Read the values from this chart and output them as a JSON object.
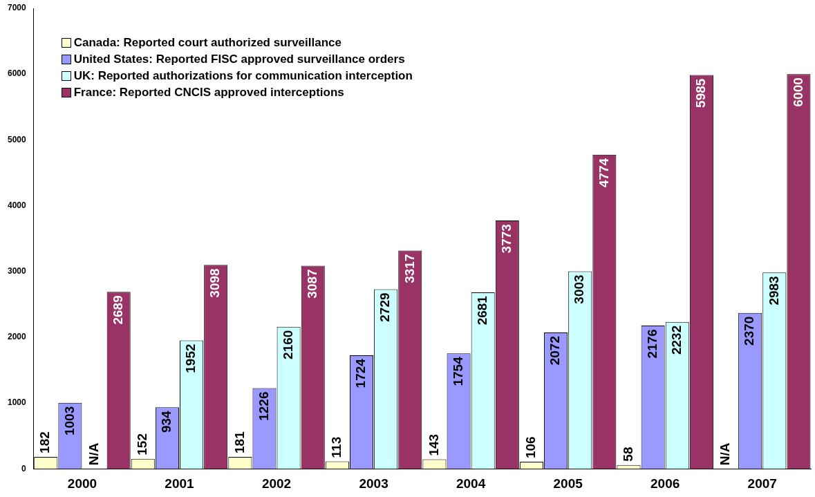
{
  "chart_data": {
    "type": "bar",
    "categories": [
      "2000",
      "2001",
      "2002",
      "2003",
      "2004",
      "2005",
      "2006",
      "2007"
    ],
    "series": [
      {
        "name": "Canada: Reported court authorized surveillance",
        "color": "#ffffcc",
        "values": [
          182,
          152,
          181,
          113,
          143,
          106,
          58,
          null
        ],
        "value_labels": [
          "182",
          "152",
          "181",
          "113",
          "143",
          "106",
          "58",
          "N/A"
        ]
      },
      {
        "name": "United States: Reported FISC approved surveillance orders",
        "color": "#9999ff",
        "values": [
          1003,
          934,
          1226,
          1724,
          1754,
          2072,
          2176,
          2370
        ],
        "value_labels": [
          "1003",
          "934",
          "1226",
          "1724",
          "1754",
          "2072",
          "2176",
          "2370"
        ]
      },
      {
        "name": "UK: Reported authorizations for communication interception",
        "color": "#ccffff",
        "values": [
          null,
          1952,
          2160,
          2729,
          2681,
          3003,
          2232,
          2983
        ],
        "value_labels": [
          "N/A",
          "1952",
          "2160",
          "2729",
          "2681",
          "3003",
          "2232",
          "2983"
        ]
      },
      {
        "name": "France: Reported CNCIS approved interceptions",
        "color": "#993366",
        "values": [
          2689,
          3098,
          3087,
          3317,
          3773,
          4774,
          5985,
          6000
        ],
        "value_labels": [
          "2689",
          "3098",
          "3087",
          "3317",
          "3773",
          "4774",
          "5985",
          "6000"
        ]
      }
    ],
    "ylim": [
      0,
      7000
    ],
    "yticks": [
      0,
      1000,
      2000,
      3000,
      4000,
      5000,
      6000,
      7000
    ],
    "grid": false,
    "legend": "top left"
  }
}
